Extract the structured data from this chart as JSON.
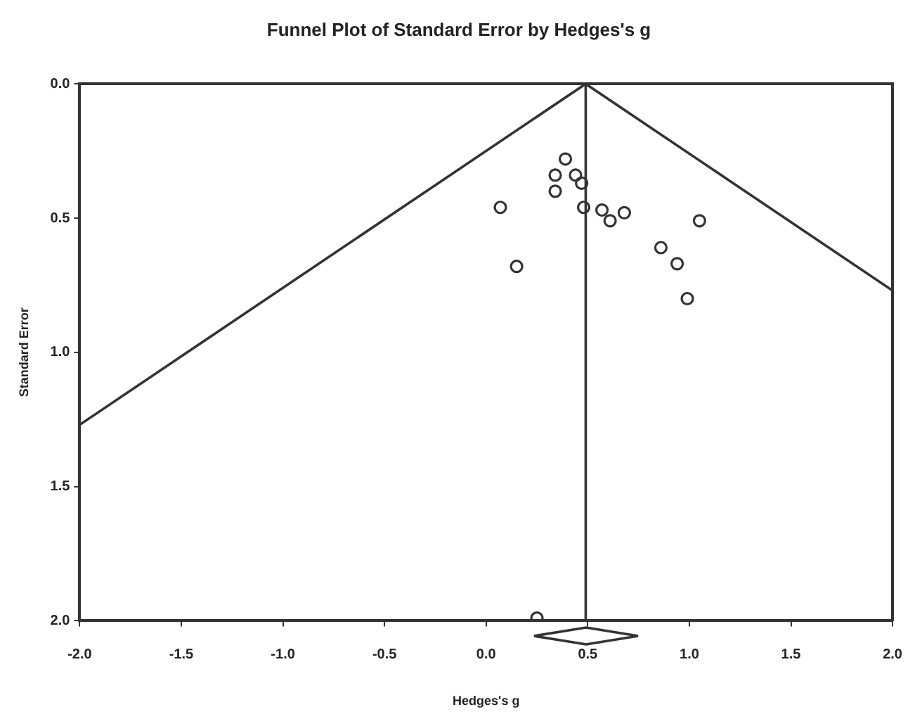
{
  "chart_data": {
    "type": "scatter",
    "title": "Funnel Plot of Standard Error by Hedges's g",
    "xlabel": "Hedges's g",
    "ylabel": "Standard Error",
    "xlim": [
      -2.0,
      2.0
    ],
    "xticks": [
      {
        "value": -2,
        "label": "-2.0"
      },
      {
        "value": -1.5,
        "label": "-1.5"
      },
      {
        "value": -1,
        "label": "-1.0"
      },
      {
        "value": -0.5,
        "label": "-0.5"
      },
      {
        "value": 0,
        "label": "0.0"
      },
      {
        "value": 0.5,
        "label": "0.5"
      },
      {
        "value": 1,
        "label": "1.0"
      },
      {
        "value": 1.5,
        "label": "1.5"
      },
      {
        "value": 2,
        "label": "2.0"
      }
    ],
    "ylim": [
      2.0,
      0.0
    ],
    "yticks": [
      {
        "value": 0,
        "label": "0.0"
      },
      {
        "value": 0.5,
        "label": "0.5"
      },
      {
        "value": 1,
        "label": "1.0"
      },
      {
        "value": 1.5,
        "label": "1.5"
      },
      {
        "value": 2,
        "label": "2.0"
      }
    ],
    "grid": false,
    "legend": false,
    "marker": "circle",
    "series": [
      {
        "type": "scatter",
        "color": "#333333",
        "x": [
          0.39,
          0.34,
          0.44,
          0.47,
          0.34,
          0.07,
          0.48,
          0.57,
          0.61,
          0.68,
          1.05,
          0.86,
          0.94,
          0.15,
          0.99,
          0.25
        ],
        "values": [
          0.28,
          0.34,
          0.34,
          0.37,
          0.4,
          0.46,
          0.46,
          0.47,
          0.51,
          0.48,
          0.51,
          0.61,
          0.67,
          0.68,
          0.8,
          1.99
        ]
      },
      {
        "type": "line",
        "color": "#333333",
        "marker": "none",
        "x": [
          -2.0,
          0.49,
          2.0
        ],
        "values": [
          1.27,
          0.0,
          0.77
        ]
      }
    ],
    "ref_lines": [
      {
        "axis": "x",
        "value": 0.49,
        "color": "#333333"
      }
    ]
  }
}
